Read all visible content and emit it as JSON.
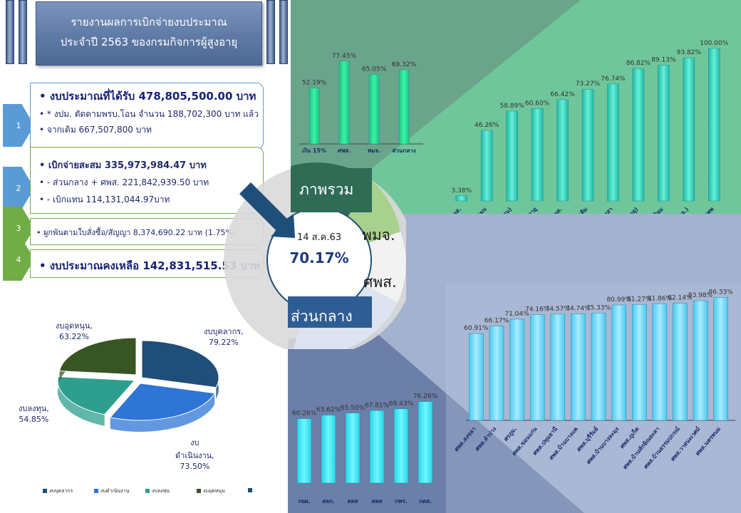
{
  "header": {
    "line1": "รายงานผลการเบิกจ่ายงบประมาณ",
    "line2": "ประจำปี 2563 ของกรมกิจการผู้สูงอายุ"
  },
  "summary": {
    "n1": "1",
    "n2": "2",
    "n3": "3",
    "n4": "4",
    "budget_received": "•  งบประมาณที่ได้รับ  478,805,500.00  บาท",
    "budget_note1": "• * งปม. ตัดตามพรบ.โอน  จำนวน 188,702,300 บาท แล้ว",
    "budget_note2": "•  จากเดิม 667,507,800 บาท",
    "spent_total": "•  เบิกจ่ายสะสม       335,973,984.47   บาท",
    "spent_central": "•  - ส่วนกลาง + ศพส.        221,842,939.50  บาท",
    "spent_proxy": "•  - เบิกแทน                     114,131,044.97บาท",
    "committed": "•  ผูกพันตามใบสั่งซื้อ/สัญญา    8,374,690.22  บาท (1.75%)",
    "remaining": "•   งบประมาณคงเหลือ  142,831,515.53   บาท"
  },
  "donut": {
    "date": "14 ส.ค.63",
    "percent": "70.17%",
    "seg_overall": "ภาพรวม",
    "seg_pmj": "พมจ.",
    "seg_spws": "ศพส.",
    "seg_central": "ส่วนกลาง"
  },
  "pie": {
    "personnel": "งบบุคลากร,",
    "personnel_pct": "79.22%",
    "operating1": "งบ",
    "operating2": "ดำเนินงาน,",
    "operating_pct": "73.50%",
    "investment": "งบลงทุน,",
    "investment_pct": "54.85%",
    "subsidy": "งบอุดหนุน,",
    "subsidy_pct": "63.22%",
    "legend": [
      "งบบุคลากร",
      "งบดำเนินงาน",
      "งบลงทุน",
      "งบอุดหนุน",
      ""
    ],
    "colors": [
      "#1f4e79",
      "#2e75d6",
      "#2e9f8f",
      "#375623",
      "#1f4e79"
    ]
  },
  "chart_data": [
    {
      "type": "bar",
      "id": "overview",
      "categories": [
        "เงิน 15%",
        "ศพส.",
        "พมจ.",
        "ส่วนกลาง"
      ],
      "values": [
        52.19,
        77.45,
        65.05,
        69.32
      ],
      "labels": [
        "52.19%",
        "77.45%",
        "65.05%",
        "69.32%"
      ],
      "ylim": [
        0,
        100
      ]
    },
    {
      "type": "bar",
      "id": "central_units",
      "categories": [
        "พยาบาลการรักษาตั้ง ศพผส.",
        "สป.กองแผน",
        "พัฒนาบ้าน (งบดำเนินงาน)",
        "ส่งเสริมพลังผู้สูงอายุ",
        "เตรียมความพร้อมศพผส.",
        "โรงเรียนผู้สูงอายุเพิ่มเติม",
        "อพม./แนวทางการวางสา",
        "ปรับสภาพแวดล้อมฯ (สูงอายุ)",
        "การขยายหลักนิยม",
        "การจัดการพื้นที่ผู้สูงอายุ (พมจ.)",
        "(พมจ.) การจัดการศพ"
      ],
      "values": [
        3.38,
        46.26,
        58.89,
        60.6,
        66.42,
        73.27,
        76.74,
        86.82,
        89.13,
        93.82,
        100.0
      ],
      "labels": [
        "3.38%",
        "46.26%",
        "58.89%",
        "60.60%",
        "66.42%",
        "73.27%",
        "76.74%",
        "86.82%",
        "89.13%",
        "93.82%",
        "100.00%"
      ],
      "ylim": [
        0,
        100
      ]
    },
    {
      "type": "bar",
      "id": "centers",
      "categories": [
        "ศพส.สงขลา",
        "ศพส.ลำปาง",
        "ศรภูม.",
        "ศพส.ขอนแก่น",
        "ศพส.ปทุมธานี",
        "ศพส.บ้านบางแค",
        "ศพส.บุรีรัมย์",
        "ศพส.บ้านบางละมุง",
        "ศพส.ภูเก็ต",
        "ศพส.บ้านทักษิณยะลา",
        "ศพส.บ้านธรรมปกรณ์",
        "ศพส.วาสนะเวศม์",
        "ศพส.นครพนม"
      ],
      "values": [
        60.91,
        66.17,
        71.04,
        74.16,
        74.57,
        74.74,
        75.33,
        80.99,
        81.27,
        81.86,
        82.14,
        83.98,
        86.33
      ],
      "labels": [
        "60.91%",
        "66.17%",
        "71.04%",
        "74.16%",
        "74.57%",
        "74.74%",
        "75.33%",
        "80.99%",
        "81.27%",
        "81.86%",
        "82.14%",
        "83.98%",
        "86.33%"
      ],
      "ylim": [
        0,
        100
      ]
    },
    {
      "type": "bar",
      "id": "divisions",
      "categories": [
        "กยผ.",
        "สลก.",
        "สคส",
        "สคส",
        "กพร.",
        "กตส."
      ],
      "values": [
        60.26,
        63.62,
        65.5,
        67.81,
        69.43,
        76.26
      ],
      "labels": [
        "60.26%",
        "63.62%",
        "65.50%",
        "67.81%",
        "69.43%",
        "76.26%"
      ],
      "ylim": [
        0,
        100
      ]
    },
    {
      "type": "pie",
      "id": "budget_types",
      "categories": [
        "งบบุคลากร",
        "งบดำเนินงาน",
        "งบลงทุน",
        "งบอุดหนุน"
      ],
      "values": [
        79.22,
        73.5,
        54.85,
        63.22
      ]
    }
  ]
}
